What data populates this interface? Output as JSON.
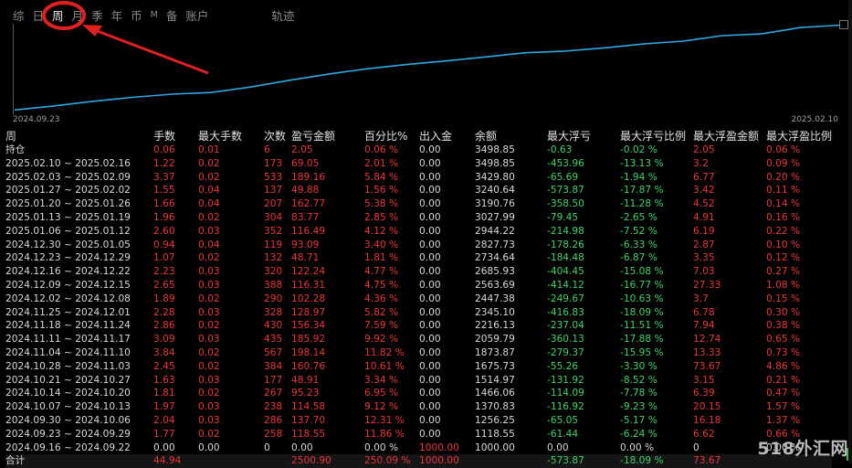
{
  "tabs": [
    "综",
    "日",
    "周",
    "月",
    "季",
    "年",
    "币",
    "M",
    "备",
    "账户",
    "轨迹"
  ],
  "chart": {
    "start_label": "2024.09.23",
    "end_label": "2025.02.10",
    "line_color": "#2fa8e0",
    "equity": [
      1000.0,
      1118.55,
      1256.25,
      1370.83,
      1466.06,
      1514.97,
      1675.73,
      1873.87,
      2059.79,
      2216.13,
      2345.1,
      2447.38,
      2563.69,
      2685.93,
      2734.64,
      2827.73,
      2944.22,
      3027.99,
      3190.76,
      3240.64,
      3429.8,
      3498.85
    ]
  },
  "headers": [
    "周",
    "手数",
    "最大手数",
    "次数",
    "盈亏金额",
    "百分比%",
    "出入金",
    "余额",
    "最大浮亏",
    "最大浮亏比例",
    "最大浮盈金额",
    "最大浮盈比例"
  ],
  "rows": [
    [
      "持仓",
      "0.06",
      "0.01",
      "6",
      "2.05",
      "0.06 %",
      "0.00",
      "3498.85",
      "-0.63",
      "-0.02 %",
      "2.05",
      "0.06 %"
    ],
    [
      "2025.02.10 ~ 2025.02.16",
      "1.22",
      "0.02",
      "173",
      "69.05",
      "2.01 %",
      "0.00",
      "3498.85",
      "-453.96",
      "-13.13 %",
      "3.2",
      "0.09 %"
    ],
    [
      "2025.02.03 ~ 2025.02.09",
      "3.37",
      "0.02",
      "533",
      "189.16",
      "5.84 %",
      "0.00",
      "3429.80",
      "-65.69",
      "-1.94 %",
      "6.77",
      "0.20 %"
    ],
    [
      "2025.01.27 ~ 2025.02.02",
      "1.55",
      "0.04",
      "137",
      "49.88",
      "1.56 %",
      "0.00",
      "3240.64",
      "-573.87",
      "-17.87 %",
      "3.42",
      "0.11 %"
    ],
    [
      "2025.01.20 ~ 2025.01.26",
      "1.66",
      "0.04",
      "207",
      "162.77",
      "5.38 %",
      "0.00",
      "3190.76",
      "-358.50",
      "-11.28 %",
      "4.52",
      "0.14 %"
    ],
    [
      "2025.01.13 ~ 2025.01.19",
      "1.96",
      "0.02",
      "304",
      "83.77",
      "2.85 %",
      "0.00",
      "3027.99",
      "-79.45",
      "-2.65 %",
      "4.91",
      "0.16 %"
    ],
    [
      "2025.01.06 ~ 2025.01.12",
      "2.60",
      "0.03",
      "352",
      "116.49",
      "4.12 %",
      "0.00",
      "2944.22",
      "-214.98",
      "-7.52 %",
      "6.19",
      "0.22 %"
    ],
    [
      "2024.12.30 ~ 2025.01.05",
      "0.94",
      "0.04",
      "119",
      "93.09",
      "3.40 %",
      "0.00",
      "2827.73",
      "-178.26",
      "-6.33 %",
      "2.87",
      "0.10 %"
    ],
    [
      "2024.12.23 ~ 2024.12.29",
      "1.07",
      "0.02",
      "132",
      "48.71",
      "1.81 %",
      "0.00",
      "2734.64",
      "-184.48",
      "-6.87 %",
      "3.35",
      "0.12 %"
    ],
    [
      "2024.12.16 ~ 2024.12.22",
      "2.23",
      "0.03",
      "320",
      "122.24",
      "4.77 %",
      "0.00",
      "2685.93",
      "-404.45",
      "-15.08 %",
      "7.03",
      "0.27 %"
    ],
    [
      "2024.12.09 ~ 2024.12.15",
      "2.65",
      "0.03",
      "388",
      "116.31",
      "4.75 %",
      "0.00",
      "2563.69",
      "-414.12",
      "-16.77 %",
      "27.33",
      "1.08 %"
    ],
    [
      "2024.12.02 ~ 2024.12.08",
      "1.89",
      "0.02",
      "290",
      "102.28",
      "4.36 %",
      "0.00",
      "2447.38",
      "-249.67",
      "-10.63 %",
      "3.7",
      "0.15 %"
    ],
    [
      "2024.11.25 ~ 2024.12.01",
      "2.28",
      "0.03",
      "328",
      "128.97",
      "5.82 %",
      "0.00",
      "2345.10",
      "-416.83",
      "-18.09 %",
      "6.78",
      "0.30 %"
    ],
    [
      "2024.11.18 ~ 2024.11.24",
      "2.86",
      "0.02",
      "430",
      "156.34",
      "7.59 %",
      "0.00",
      "2216.13",
      "-237.04",
      "-11.51 %",
      "7.94",
      "0.38 %"
    ],
    [
      "2024.11.11 ~ 2024.11.17",
      "3.09",
      "0.03",
      "435",
      "185.92",
      "9.92 %",
      "0.00",
      "2059.79",
      "-360.13",
      "-17.88 %",
      "12.74",
      "0.65 %"
    ],
    [
      "2024.11.04 ~ 2024.11.10",
      "3.84",
      "0.02",
      "567",
      "198.14",
      "11.82 %",
      "0.00",
      "1873.87",
      "-279.37",
      "-15.95 %",
      "13.33",
      "0.73 %"
    ],
    [
      "2024.10.28 ~ 2024.11.03",
      "2.45",
      "0.02",
      "384",
      "160.76",
      "10.61 %",
      "0.00",
      "1675.73",
      "-55.26",
      "-3.30 %",
      "73.67",
      "4.86 %"
    ],
    [
      "2024.10.21 ~ 2024.10.27",
      "1.63",
      "0.03",
      "177",
      "48.91",
      "3.34 %",
      "0.00",
      "1514.97",
      "-131.92",
      "-8.52 %",
      "3.15",
      "0.21 %"
    ],
    [
      "2024.10.14 ~ 2024.10.20",
      "1.81",
      "0.02",
      "267",
      "95.23",
      "6.95 %",
      "0.00",
      "1466.06",
      "-114.09",
      "-7.78 %",
      "6.39",
      "0.47 %"
    ],
    [
      "2024.10.07 ~ 2024.10.13",
      "1.97",
      "0.03",
      "238",
      "114.58",
      "9.12 %",
      "0.00",
      "1370.83",
      "-116.92",
      "-9.23 %",
      "20.15",
      "1.57 %"
    ],
    [
      "2024.09.30 ~ 2024.10.06",
      "2.04",
      "0.03",
      "286",
      "137.70",
      "12.31 %",
      "0.00",
      "1256.25",
      "-65.05",
      "-5.17 %",
      "16.18",
      "1.37 %"
    ],
    [
      "2024.09.23 ~ 2024.09.29",
      "1.77",
      "0.02",
      "258",
      "118.55",
      "11.86 %",
      "0.00",
      "1118.55",
      "-61.44",
      "-6.24 %",
      "6.62",
      "0.66 %"
    ],
    [
      "2024.09.16 ~ 2024.09.22",
      "0.00",
      "0.00",
      "0",
      "0.00",
      "0.00 %",
      "1000.00",
      "1000.00",
      "0.00",
      "0.00 %",
      "0",
      "0.00 %"
    ]
  ],
  "total": [
    "合计",
    "44.94",
    "",
    "",
    "2500.90",
    "250.09 %",
    "1000.00",
    "",
    "-573.87",
    "-18.09 %",
    "73.67",
    ""
  ],
  "watermark": "518外汇网"
}
